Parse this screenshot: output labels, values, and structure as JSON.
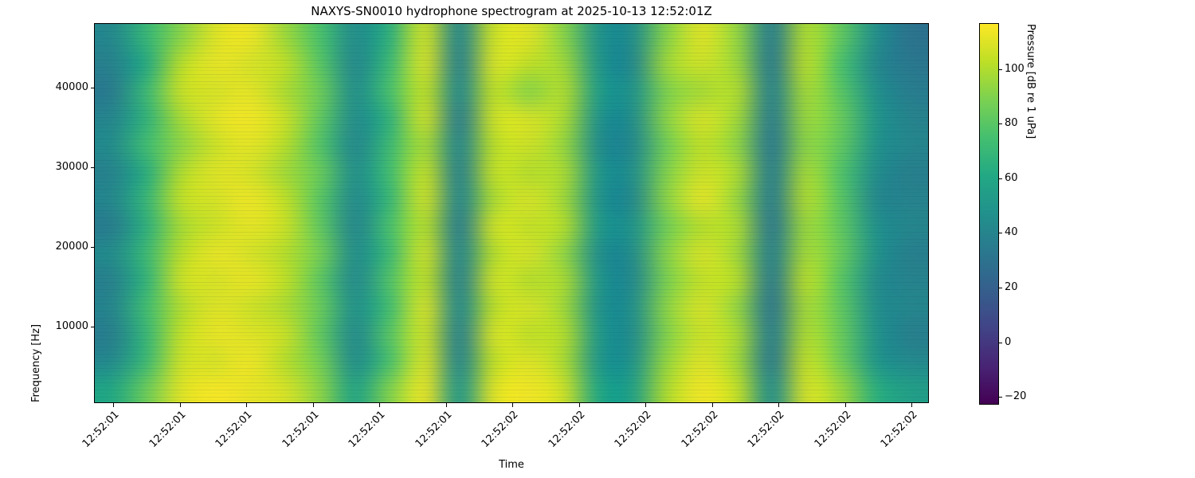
{
  "figure": {
    "background": "#ffffff",
    "text_color": "#000000"
  },
  "chart_data": {
    "type": "heatmap",
    "title": "NAXYS-SN0010 hydrophone spectrogram at 2025-10-13 12:52:01Z",
    "xlabel": "Time",
    "ylabel": "Frequency [Hz]",
    "colorbar_label": "Pressure [dB re 1 uPa]",
    "colormap": "viridis",
    "grid_lines": "off",
    "x_tick_labels": [
      "12:52:01",
      "12:52:01",
      "12:52:01",
      "12:52:01",
      "12:52:01",
      "12:52:01",
      "12:52:02",
      "12:52:02",
      "12:52:02",
      "12:52:02",
      "12:52:02",
      "12:52:02",
      "12:52:02"
    ],
    "y_ticks": [
      {
        "label": "10000",
        "value": 10000
      },
      {
        "label": "20000",
        "value": 20000
      },
      {
        "label": "30000",
        "value": 30000
      },
      {
        "label": "40000",
        "value": 40000
      }
    ],
    "ylim": [
      500,
      48000
    ],
    "colorbar_ticks": [
      {
        "label": "100",
        "value": 100
      },
      {
        "label": "80",
        "value": 80
      },
      {
        "label": "60",
        "value": 60
      },
      {
        "label": "40",
        "value": 40
      },
      {
        "label": "20",
        "value": 20
      },
      {
        "label": "0",
        "value": 0
      },
      {
        "label": "−20",
        "value": -20
      }
    ],
    "db_range": [
      -22.6,
      116.5
    ],
    "colormap_stops": [
      [
        0.0,
        "#440154"
      ],
      [
        0.1,
        "#482475"
      ],
      [
        0.2,
        "#414487"
      ],
      [
        0.3,
        "#355f8d"
      ],
      [
        0.4,
        "#2a788e"
      ],
      [
        0.5,
        "#21918c"
      ],
      [
        0.6,
        "#22a884"
      ],
      [
        0.7,
        "#44bf70"
      ],
      [
        0.8,
        "#7ad151"
      ],
      [
        0.9,
        "#bddf26"
      ],
      [
        1.0,
        "#fde725"
      ]
    ],
    "grid_db_note": "rows top-to-bottom span 48000 Hz down to 500 Hz; columns left-to-right span the plotted time window; values are pressure in dB re 1 uPa estimated from the rendered image",
    "grid_db": [
      [
        42,
        70,
        92,
        110,
        113,
        96,
        76,
        44,
        66,
        106,
        40,
        106,
        110,
        92,
        48,
        45,
        92,
        110,
        94,
        36,
        100,
        82,
        46,
        30
      ],
      [
        38,
        62,
        102,
        112,
        108,
        103,
        80,
        42,
        72,
        108,
        38,
        108,
        103,
        97,
        50,
        42,
        97,
        106,
        96,
        34,
        102,
        76,
        42,
        33
      ],
      [
        35,
        72,
        105,
        108,
        111,
        99,
        85,
        46,
        76,
        103,
        42,
        103,
        92,
        100,
        54,
        48,
        90,
        98,
        100,
        38,
        98,
        80,
        47,
        36
      ],
      [
        41,
        67,
        98,
        111,
        114,
        105,
        82,
        44,
        67,
        106,
        36,
        106,
        108,
        99,
        48,
        45,
        93,
        108,
        97,
        35,
        96,
        84,
        50,
        39
      ],
      [
        44,
        74,
        93,
        106,
        111,
        101,
        78,
        42,
        72,
        98,
        40,
        102,
        106,
        95,
        45,
        42,
        87,
        103,
        93,
        33,
        93,
        82,
        48,
        41
      ],
      [
        39,
        64,
        100,
        110,
        108,
        97,
        84,
        46,
        74,
        104,
        38,
        104,
        101,
        99,
        50,
        46,
        91,
        106,
        99,
        36,
        98,
        78,
        45,
        37
      ],
      [
        42,
        70,
        104,
        108,
        113,
        103,
        80,
        43,
        70,
        106,
        40,
        99,
        108,
        97,
        48,
        42,
        93,
        111,
        95,
        35,
        100,
        80,
        42,
        39
      ],
      [
        36,
        66,
        98,
        106,
        111,
        105,
        82,
        41,
        76,
        101,
        36,
        106,
        104,
        101,
        52,
        48,
        87,
        101,
        99,
        33,
        96,
        82,
        47,
        41
      ],
      [
        44,
        72,
        102,
        112,
        108,
        101,
        87,
        45,
        72,
        106,
        40,
        101,
        108,
        94,
        46,
        44,
        92,
        108,
        97,
        37,
        98,
        84,
        48,
        37
      ],
      [
        38,
        68,
        106,
        108,
        112,
        103,
        81,
        43,
        78,
        103,
        38,
        106,
        101,
        99,
        50,
        42,
        89,
        104,
        101,
        34,
        102,
        80,
        44,
        39
      ],
      [
        41,
        74,
        100,
        110,
        106,
        99,
        84,
        47,
        74,
        108,
        42,
        102,
        108,
        97,
        48,
        46,
        93,
        108,
        94,
        32,
        98,
        82,
        46,
        41
      ],
      [
        37,
        70,
        104,
        112,
        110,
        105,
        82,
        43,
        80,
        106,
        38,
        108,
        103,
        101,
        52,
        44,
        91,
        106,
        99,
        36,
        100,
        84,
        48,
        37
      ],
      [
        43,
        72,
        106,
        108,
        113,
        101,
        87,
        45,
        76,
        108,
        40,
        103,
        110,
        99,
        50,
        48,
        95,
        110,
        97,
        34,
        104,
        86,
        50,
        43
      ],
      [
        60,
        85,
        110,
        115,
        112,
        108,
        92,
        58,
        90,
        112,
        50,
        110,
        114,
        106,
        60,
        56,
        100,
        114,
        104,
        45,
        108,
        96,
        65,
        55
      ]
    ]
  }
}
